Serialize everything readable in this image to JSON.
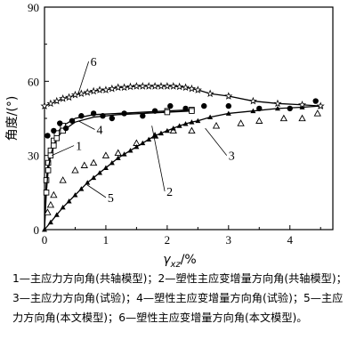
{
  "chart_data": {
    "type": "scatter",
    "xlabel_main": "γ",
    "xlabel_sub": "xz",
    "xlabel_unit": "/%",
    "ylabel": "角度/(°)",
    "xlim": [
      0,
      4.7
    ],
    "ylim": [
      0,
      90
    ],
    "xticks": [
      0,
      1,
      2,
      3,
      4
    ],
    "yticks": [
      0,
      30,
      60,
      90
    ],
    "grid": false,
    "series": [
      {
        "name": "1",
        "style": "line",
        "x": [
          0,
          0.03,
          0.06,
          0.1,
          0.15,
          0.2,
          0.3,
          0.5,
          0.8,
          1.2,
          1.6,
          2.0,
          2.4
        ],
        "values": [
          0,
          20,
          27,
          32,
          36,
          39,
          42,
          45,
          46.5,
          47,
          47.5,
          48,
          48.5
        ]
      },
      {
        "name": "2",
        "style": "line",
        "x": [
          0,
          0.03,
          0.06,
          0.1,
          0.15,
          0.2,
          0.3,
          0.5,
          0.8,
          1.2,
          1.6,
          2.0,
          2.4
        ],
        "values": [
          0,
          15,
          24,
          30,
          34,
          37,
          40,
          43.5,
          45.5,
          46.5,
          47,
          47.5,
          48
        ]
      },
      {
        "name": "3",
        "style": "open-triangle",
        "x": [
          0.05,
          0.1,
          0.15,
          0.3,
          0.5,
          0.65,
          0.8,
          1.0,
          1.2,
          1.5,
          1.8,
          2.1,
          2.4,
          2.8,
          3.2,
          3.5,
          3.9,
          4.2,
          4.45
        ],
        "values": [
          7,
          10,
          14,
          20,
          24,
          26,
          27,
          30,
          31,
          35,
          38,
          40,
          40,
          42,
          43,
          44,
          45,
          45,
          47
        ]
      },
      {
        "name": "4",
        "style": "filled-circle",
        "x": [
          0.05,
          0.15,
          0.25,
          0.35,
          0.45,
          0.6,
          0.8,
          0.95,
          1.1,
          1.3,
          1.6,
          1.8,
          2.05,
          2.3,
          2.6,
          3.0,
          3.5,
          4.0,
          4.42
        ],
        "values": [
          38,
          40,
          43,
          41,
          44,
          46,
          47,
          46,
          45,
          47,
          46,
          48,
          50,
          49,
          50,
          50,
          49,
          49,
          52
        ]
      },
      {
        "name": "5",
        "style": "line-filled-triangle",
        "x": [
          0,
          0.1,
          0.2,
          0.3,
          0.4,
          0.5,
          0.6,
          0.7,
          0.8,
          0.9,
          1.0,
          1.1,
          1.2,
          1.3,
          1.4,
          1.5,
          1.6,
          1.7,
          1.8,
          1.9,
          2.0,
          2.1,
          2.2,
          2.3,
          2.4,
          2.5,
          2.7,
          3.0,
          3.4,
          3.8,
          4.2,
          4.5
        ],
        "values": [
          0,
          3,
          6,
          9,
          11.5,
          14,
          16.5,
          19,
          21,
          23,
          25,
          27,
          29,
          30.5,
          32,
          33.5,
          35,
          36.5,
          38,
          39,
          40,
          41,
          42,
          42.8,
          43.5,
          44,
          45.5,
          47,
          48,
          49,
          49.5,
          50
        ]
      },
      {
        "name": "6",
        "style": "line-star",
        "x": [
          0,
          0.1,
          0.2,
          0.3,
          0.4,
          0.5,
          0.6,
          0.7,
          0.8,
          0.9,
          1.0,
          1.1,
          1.2,
          1.3,
          1.4,
          1.5,
          1.6,
          1.7,
          1.8,
          1.9,
          2.0,
          2.1,
          2.2,
          2.3,
          2.4,
          2.5,
          2.7,
          3.0,
          3.4,
          3.8,
          4.2,
          4.5
        ],
        "values": [
          50,
          51,
          52,
          53,
          53.5,
          54.5,
          55,
          55.5,
          56,
          56.5,
          56.5,
          57,
          57.5,
          57.5,
          57.8,
          58,
          58,
          58,
          58,
          58,
          58,
          58,
          57.8,
          57.5,
          57,
          56.5,
          55,
          54,
          52,
          51,
          50.5,
          50
        ]
      }
    ],
    "curve_labels": [
      {
        "text": "1",
        "x": 0.48,
        "y": 34,
        "lx": 0.12,
        "ly": 30
      },
      {
        "text": "2",
        "x": 1.96,
        "y": 15.5,
        "lx": 1.75,
        "ly": 42
      },
      {
        "text": "3",
        "x": 2.97,
        "y": 30,
        "lx": 2.62,
        "ly": 41
      },
      {
        "text": "4",
        "x": 0.82,
        "y": 40.5,
        "lx": 0.55,
        "ly": 44
      },
      {
        "text": "5",
        "x": 1.0,
        "y": 13,
        "lx": 0.7,
        "ly": 18
      },
      {
        "text": "6",
        "x": 0.72,
        "y": 68,
        "lx": 0.55,
        "ly": 55
      }
    ]
  },
  "caption": "1—主应力方向角(共轴模型)；2—塑性主应变增量方向角(共轴模型)；3—主应力方向角(试验)；4—塑性主应变增量方向角(试验)；5—主应力方向角(本文模型)；6—塑性主应变增量方向角(本文模型)。"
}
